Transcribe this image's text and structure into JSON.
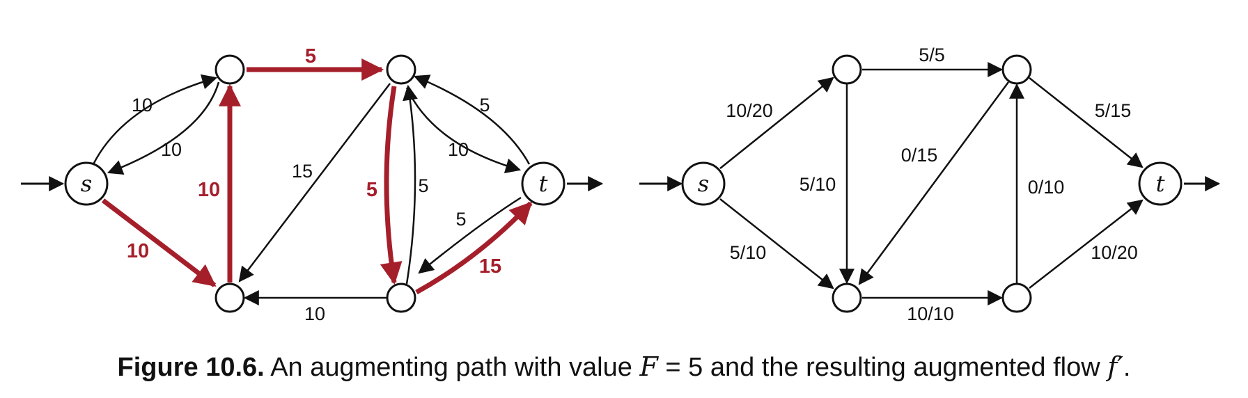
{
  "colors": {
    "ink": "#111111",
    "highlight": "#a51f2b"
  },
  "left_graph": {
    "node_labels": {
      "s": "s",
      "t": "t"
    },
    "edge_labels": {
      "s_to_a": "10",
      "a_to_s": "10",
      "s_to_b": "10",
      "b_to_a": "10",
      "a_to_c": "5",
      "c_to_b": "15",
      "c_to_d": "5",
      "d_to_c": "5",
      "c_to_t": "10",
      "t_to_c": "5",
      "t_to_d": "5",
      "d_to_t": "15",
      "d_to_b": "10"
    }
  },
  "right_graph": {
    "node_labels": {
      "s": "s",
      "t": "t"
    },
    "edge_labels": {
      "s_to_a": "10/20",
      "s_to_b": "5/10",
      "a_to_c": "5/5",
      "a_to_b": "5/10",
      "c_to_b": "0/15",
      "d_to_c": "0/10",
      "c_to_t": "5/15",
      "b_to_d": "10/10",
      "d_to_t": "10/20"
    }
  },
  "caption": {
    "label": "Figure 10.6.",
    "text_before": "An augmenting path with value",
    "math_var": "F",
    "math_eq": "= 5",
    "text_after": "and the resulting augmented flow",
    "math_flow": "f′",
    "end": "."
  }
}
